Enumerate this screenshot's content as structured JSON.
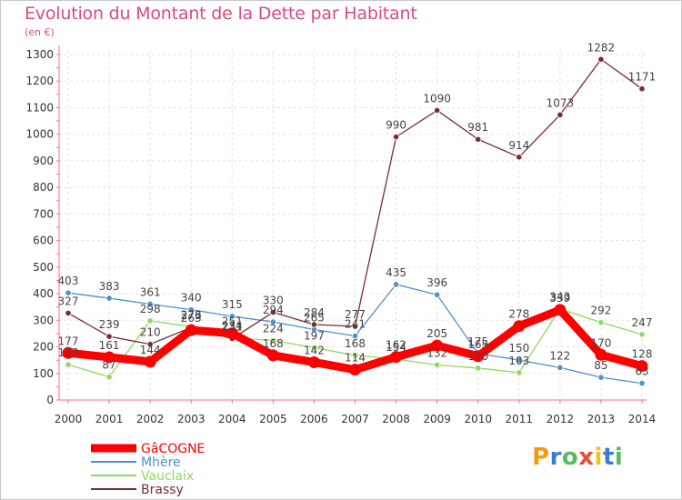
{
  "chart_data": {
    "type": "line",
    "title": "Evolution du Montant de la Dette par Habitant",
    "subtitle": "(en €)",
    "x": [
      "2000",
      "2001",
      "2002",
      "2003",
      "2004",
      "2005",
      "2006",
      "2007",
      "2008",
      "2009",
      "2010",
      "2011",
      "2012",
      "2013",
      "2014"
    ],
    "ylim": [
      0,
      1300
    ],
    "yticks": [
      0,
      100,
      200,
      300,
      400,
      500,
      600,
      700,
      800,
      900,
      1000,
      1100,
      1200,
      1300
    ],
    "grid": true,
    "legend_position": "bottom-left",
    "series": [
      {
        "name": "GâCOGNE",
        "color": "#ff0000",
        "values": [
          177,
          161,
          144,
          263,
          251,
          168,
          142,
          114,
          162,
          205,
          165,
          278,
          339,
          170,
          128
        ]
      },
      {
        "name": "Mhère",
        "color": "#4f8fcf",
        "values": [
          403,
          383,
          361,
          340,
          315,
          294,
          265,
          241,
          435,
          396,
          175,
          150,
          122,
          85,
          63
        ]
      },
      {
        "name": "Vauclaix",
        "color": "#8fd860",
        "values": [
          133,
          87,
          298,
          276,
          234,
          224,
          197,
          168,
          154,
          132,
          120,
          103,
          343,
          292,
          247
        ]
      },
      {
        "name": "Brassy",
        "color": "#7a2b30",
        "values": [
          327,
          239,
          210,
          273,
          231,
          330,
          284,
          277,
          990,
          1090,
          981,
          914,
          1073,
          1282,
          1171
        ]
      }
    ],
    "data_labels": [
      [
        177,
        161,
        144,
        263,
        251,
        168,
        142,
        114,
        162,
        205,
        165,
        278,
        339,
        170,
        128
      ],
      [
        403,
        383,
        361,
        340,
        315,
        294,
        265,
        241,
        435,
        396,
        175,
        150,
        122,
        85,
        63
      ],
      [
        133,
        87,
        298,
        276,
        234,
        224,
        197,
        168,
        154,
        132,
        120,
        103,
        343,
        292,
        247
      ],
      [
        327,
        239,
        210,
        273,
        231,
        330,
        284,
        277,
        990,
        1090,
        981,
        914,
        1073,
        1282,
        1171
      ]
    ]
  },
  "logo": {
    "text": "Proxiti"
  }
}
